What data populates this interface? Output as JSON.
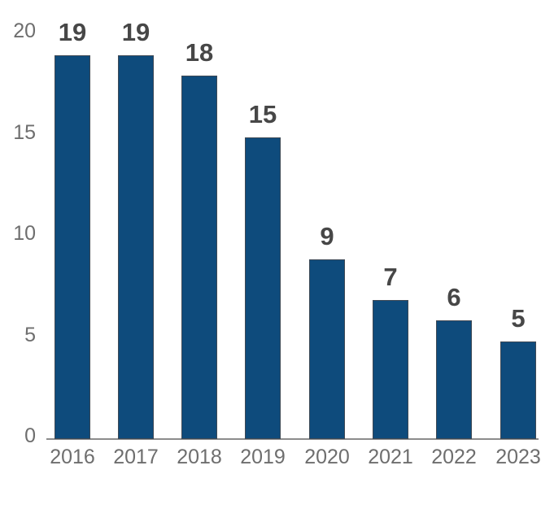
{
  "chart_data": {
    "type": "bar",
    "title": "",
    "xlabel": "",
    "ylabel": "",
    "categories": [
      "2016",
      "2017",
      "2018",
      "2019",
      "2020",
      "2021",
      "2022",
      "2023"
    ],
    "values": [
      19,
      19,
      18,
      15,
      9,
      7,
      6,
      5
    ],
    "bar_heights_units": [
      18.8,
      18.8,
      17.8,
      14.8,
      8.8,
      6.8,
      5.8,
      4.8
    ],
    "data_labels_shown": true,
    "ylim": [
      0,
      20
    ],
    "yticks": [
      0,
      5,
      10,
      15,
      20
    ],
    "grid": false,
    "legend": null,
    "colors": {
      "bar_fill": "#0e4b7c",
      "bar_border": "#3e4955",
      "data_label": "#474747",
      "axis_label": "#6e6e6e",
      "axis_line": "#8c8c8c",
      "background": "#ffffff"
    }
  }
}
